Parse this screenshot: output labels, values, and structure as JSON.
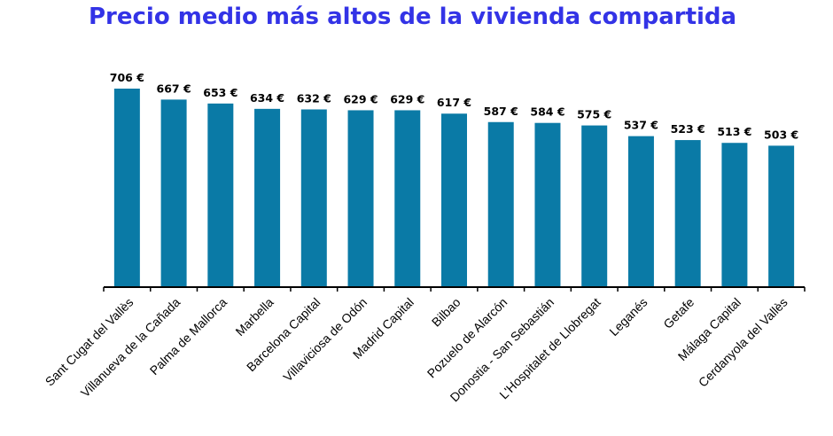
{
  "title": "Precio medio más altos de la vivienda compartida",
  "chart_data": {
    "type": "bar",
    "title": "Precio medio más altos de la vivienda compartida",
    "xlabel": "",
    "ylabel": "",
    "unit": "€",
    "bar_color": "#0a7aa6",
    "title_color": "#3333e6",
    "grid": false,
    "legend": "none",
    "ylim": [
      0,
      706
    ],
    "categories": [
      "Sant Cugat del Vallès",
      "Villanueva de la Cañada",
      "Palma de Mallorca",
      "Marbella",
      "Barcelona Capital",
      "Villaviciosa de Odón",
      "Madrid Capital",
      "Bilbao",
      "Pozuelo de Alarcón",
      "Donostia - San Sebastián",
      "L'Hospitalet de Llobregat",
      "Leganés",
      "Getafe",
      "Málaga Capital",
      "Cerdanyola del Vallès"
    ],
    "values": [
      706,
      667,
      653,
      634,
      632,
      629,
      629,
      617,
      587,
      584,
      575,
      537,
      523,
      513,
      503
    ],
    "value_labels": [
      "706 €",
      "667 €",
      "653 €",
      "634 €",
      "632 €",
      "629 €",
      "629 €",
      "617 €",
      "587 €",
      "584 €",
      "575 €",
      "537 €",
      "523 €",
      "513 €",
      "503 €"
    ]
  }
}
